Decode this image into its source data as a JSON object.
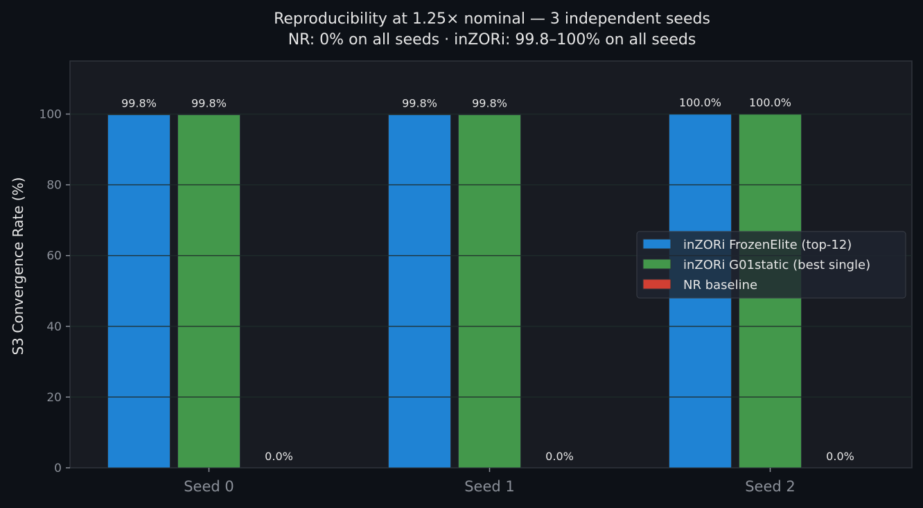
{
  "chart_data": {
    "type": "bar",
    "title": "Reproducibility at 1.25× nominal — 3 independent seeds",
    "subtitle": "NR: 0% on all seeds · inZORi: 99.8–100% on all seeds",
    "xlabel": "",
    "ylabel": "S3 Convergence Rate (%)",
    "ylim": [
      0,
      115
    ],
    "yticks": [
      0,
      20,
      40,
      60,
      80,
      100
    ],
    "grid": true,
    "legend_position": "center-right",
    "categories": [
      "Seed 0",
      "Seed 1",
      "Seed 2"
    ],
    "series": [
      {
        "name": "inZORi FrozenElite (top-12)",
        "color": "#1f83d4",
        "values": [
          99.8,
          99.8,
          100.0
        ],
        "labels": [
          "99.8%",
          "99.8%",
          "100.0%"
        ]
      },
      {
        "name": "inZORi G01static (best single)",
        "color": "#43984b",
        "values": [
          99.8,
          99.8,
          100.0
        ],
        "labels": [
          "99.8%",
          "99.8%",
          "100.0%"
        ]
      },
      {
        "name": "NR baseline",
        "color": "#d13f33",
        "values": [
          0.0,
          0.0,
          0.0
        ],
        "labels": [
          "0.0%",
          "0.0%",
          "0.0%"
        ]
      }
    ]
  }
}
